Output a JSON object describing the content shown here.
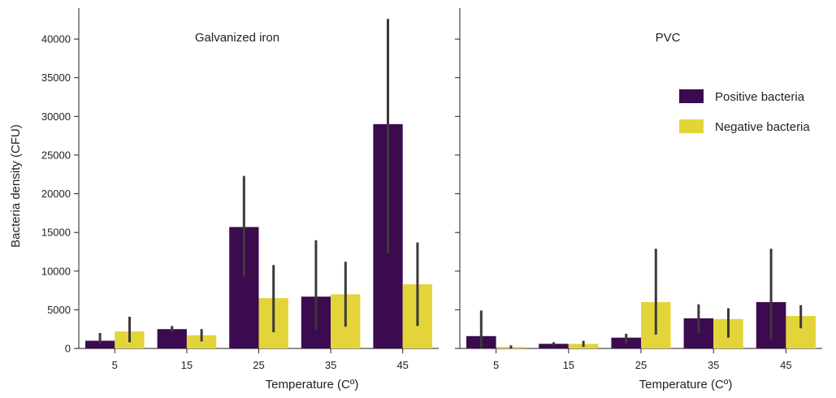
{
  "chart_data": [
    {
      "type": "bar",
      "title": "Galvanized iron",
      "xlabel": "Temperature (Cº)",
      "ylabel": "Bacteria density (CFU)",
      "ylim": [
        0,
        44000
      ],
      "yticks": [
        0,
        5000,
        10000,
        15000,
        20000,
        25000,
        30000,
        35000,
        40000
      ],
      "categories": [
        "5",
        "15",
        "25",
        "35",
        "45"
      ],
      "series": [
        {
          "name": "Positive bacteria",
          "color": "#3c0a4f",
          "values": [
            1000,
            2500,
            15700,
            6700,
            29000
          ],
          "err_low": [
            600,
            2200,
            9300,
            2400,
            12300
          ],
          "err_high": [
            2000,
            2900,
            22300,
            14000,
            42600
          ]
        },
        {
          "name": "Negative bacteria",
          "color": "#e3d43a",
          "values": [
            2200,
            1700,
            6500,
            7000,
            8300
          ],
          "err_low": [
            800,
            900,
            2100,
            2800,
            2900
          ],
          "err_high": [
            4100,
            2500,
            10800,
            11200,
            13700
          ]
        }
      ]
    },
    {
      "type": "bar",
      "title": "PVC",
      "xlabel": "Temperature (Cº)",
      "ylim": [
        0,
        44000
      ],
      "categories": [
        "5",
        "15",
        "25",
        "35",
        "45"
      ],
      "series": [
        {
          "name": "Positive bacteria",
          "color": "#3c0a4f",
          "values": [
            1600,
            600,
            1400,
            3900,
            6000
          ],
          "err_low": [
            0,
            400,
            700,
            2000,
            1200
          ],
          "err_high": [
            4900,
            800,
            1900,
            5700,
            12900
          ]
        },
        {
          "name": "Negative bacteria",
          "color": "#e3d43a",
          "values": [
            200,
            600,
            6000,
            3800,
            4200
          ],
          "err_low": [
            0,
            200,
            1800,
            1400,
            2600
          ],
          "err_high": [
            400,
            1000,
            12900,
            5200,
            5600
          ]
        }
      ]
    }
  ],
  "legend": {
    "placement": "right of PVC panel, upper",
    "items": [
      {
        "label": "Positive bacteria",
        "color": "#3c0a4f"
      },
      {
        "label": "Negative bacteria",
        "color": "#e3d43a"
      }
    ]
  }
}
